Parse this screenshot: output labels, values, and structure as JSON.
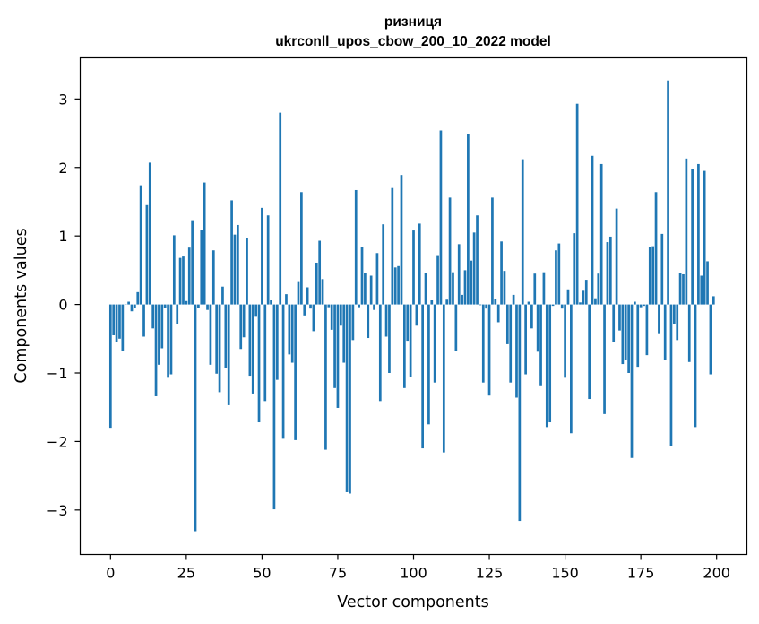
{
  "chart_data": {
    "type": "bar",
    "title": "ризниця",
    "subtitle": "ukrconll_upos_cbow_200_10_2022 model",
    "xlabel": "Vector components",
    "ylabel": "Components values",
    "xlim": [
      -10,
      210
    ],
    "ylim": [
      -3.65,
      3.6
    ],
    "xticks": [
      0,
      25,
      50,
      75,
      100,
      125,
      150,
      175,
      200
    ],
    "yticks": [
      -3,
      -2,
      -1,
      0,
      1,
      2,
      3
    ],
    "xtick_labels": [
      "0",
      "25",
      "50",
      "75",
      "100",
      "125",
      "150",
      "175",
      "200"
    ],
    "ytick_labels": [
      "−3",
      "−2",
      "−1",
      "0",
      "1",
      "2",
      "3"
    ],
    "grid": false,
    "bar_color": "#1f77b4",
    "x": [
      0,
      1,
      2,
      3,
      4,
      5,
      6,
      7,
      8,
      9,
      10,
      11,
      12,
      13,
      14,
      15,
      16,
      17,
      18,
      19,
      20,
      21,
      22,
      23,
      24,
      25,
      26,
      27,
      28,
      29,
      30,
      31,
      32,
      33,
      34,
      35,
      36,
      37,
      38,
      39,
      40,
      41,
      42,
      43,
      44,
      45,
      46,
      47,
      48,
      49,
      50,
      51,
      52,
      53,
      54,
      55,
      56,
      57,
      58,
      59,
      60,
      61,
      62,
      63,
      64,
      65,
      66,
      67,
      68,
      69,
      70,
      71,
      72,
      73,
      74,
      75,
      76,
      77,
      78,
      79,
      80,
      81,
      82,
      83,
      84,
      85,
      86,
      87,
      88,
      89,
      90,
      91,
      92,
      93,
      94,
      95,
      96,
      97,
      98,
      99,
      100,
      101,
      102,
      103,
      104,
      105,
      106,
      107,
      108,
      109,
      110,
      111,
      112,
      113,
      114,
      115,
      116,
      117,
      118,
      119,
      120,
      121,
      122,
      123,
      124,
      125,
      126,
      127,
      128,
      129,
      130,
      131,
      132,
      133,
      134,
      135,
      136,
      137,
      138,
      139,
      140,
      141,
      142,
      143,
      144,
      145,
      146,
      147,
      148,
      149,
      150,
      151,
      152,
      153,
      154,
      155,
      156,
      157,
      158,
      159,
      160,
      161,
      162,
      163,
      164,
      165,
      166,
      167,
      168,
      169,
      170,
      171,
      172,
      173,
      174,
      175,
      176,
      177,
      178,
      179,
      180,
      181,
      182,
      183,
      184,
      185,
      186,
      187,
      188,
      189,
      190,
      191,
      192,
      193,
      194,
      195,
      196,
      197,
      198,
      199
    ],
    "values": [
      -1.8,
      -0.45,
      -0.55,
      -0.5,
      -0.68,
      0.0,
      0.04,
      -0.1,
      -0.05,
      0.18,
      1.74,
      -0.47,
      1.45,
      2.07,
      -0.35,
      -1.34,
      -0.88,
      -0.64,
      -0.05,
      -1.07,
      -1.02,
      1.01,
      -0.28,
      0.68,
      0.7,
      0.05,
      0.83,
      1.23,
      -3.31,
      -0.05,
      1.09,
      1.78,
      -0.08,
      -0.88,
      0.79,
      -1.01,
      -1.28,
      0.26,
      -0.93,
      -1.47,
      1.52,
      1.02,
      1.16,
      -0.65,
      -0.48,
      0.97,
      -1.04,
      -1.3,
      -0.18,
      -1.72,
      1.41,
      -1.41,
      1.3,
      0.06,
      -2.99,
      -1.1,
      2.8,
      -1.96,
      0.15,
      -0.73,
      -0.85,
      -1.98,
      0.34,
      1.64,
      -0.16,
      0.25,
      -0.06,
      -0.39,
      0.61,
      0.93,
      0.37,
      -2.12,
      -0.04,
      -0.37,
      -1.22,
      -1.51,
      -0.31,
      -0.85,
      -2.74,
      -2.76,
      -0.52,
      1.67,
      -0.04,
      0.84,
      0.46,
      -0.49,
      0.42,
      -0.08,
      0.75,
      -1.41,
      1.17,
      -0.47,
      -1.0,
      1.7,
      0.54,
      0.56,
      1.89,
      -1.22,
      -0.53,
      -1.06,
      1.08,
      -0.31,
      1.18,
      -2.1,
      0.46,
      -1.75,
      0.06,
      -1.14,
      0.72,
      2.54,
      -2.16,
      0.07,
      1.56,
      0.47,
      -0.68,
      0.88,
      0.14,
      0.5,
      2.49,
      0.64,
      1.05,
      1.3,
      -0.01,
      -1.14,
      -0.06,
      -1.33,
      1.56,
      0.08,
      -0.26,
      0.92,
      0.49,
      -0.58,
      -1.14,
      0.14,
      -1.36,
      -3.16,
      2.12,
      -1.02,
      0.04,
      -0.35,
      0.45,
      -0.69,
      -1.18,
      0.47,
      -1.79,
      -1.72,
      -0.02,
      0.79,
      0.89,
      -0.06,
      -1.07,
      0.22,
      -1.88,
      1.04,
      2.93,
      0.03,
      0.2,
      0.36,
      -1.38,
      2.17,
      0.09,
      0.45,
      2.05,
      -1.6,
      0.91,
      0.99,
      -0.55,
      1.4,
      -0.38,
      -0.87,
      -0.81,
      -1.0,
      -2.24,
      0.04,
      -0.91,
      -0.04,
      -0.02,
      -0.74,
      0.84,
      0.85,
      1.64,
      -0.42,
      1.03,
      -0.81,
      3.27,
      -2.07,
      -0.28,
      -0.52,
      0.46,
      0.44,
      2.13,
      -0.84,
      1.98,
      -1.79,
      2.05,
      0.42,
      1.95,
      0.63,
      -1.02,
      0.12
    ]
  }
}
